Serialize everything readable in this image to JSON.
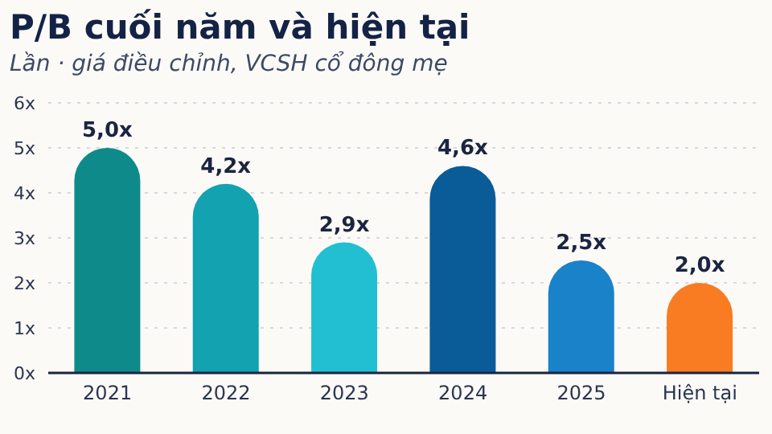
{
  "chart_data": {
    "type": "bar",
    "title": "P/B cuối năm và hiện tại",
    "subtitle": "Lần · giá điều chỉnh, VCSH cổ đông mẹ",
    "categories": [
      "2021",
      "2022",
      "2023",
      "2024",
      "2025",
      "Hiện tại"
    ],
    "values": [
      5.0,
      4.2,
      2.9,
      4.6,
      2.5,
      2.0
    ],
    "colors": [
      "#0f8a8a",
      "#12a2b0",
      "#22bfd2",
      "#0a5c99",
      "#1a82c8",
      "#f97b22"
    ],
    "value_labels": [
      "5,0x",
      "4,2x",
      "2,9x",
      "4,6x",
      "2,5x",
      "2,0x"
    ],
    "ylim": [
      0,
      6
    ],
    "yticks": [
      {
        "value": 0,
        "label": "0x"
      },
      {
        "value": 1,
        "label": "1x"
      },
      {
        "value": 2,
        "label": "2x"
      },
      {
        "value": 3,
        "label": "3x"
      },
      {
        "value": 4,
        "label": "4x"
      },
      {
        "value": 5,
        "label": "5x"
      },
      {
        "value": 6,
        "label": "6x"
      }
    ],
    "grid": "y"
  }
}
